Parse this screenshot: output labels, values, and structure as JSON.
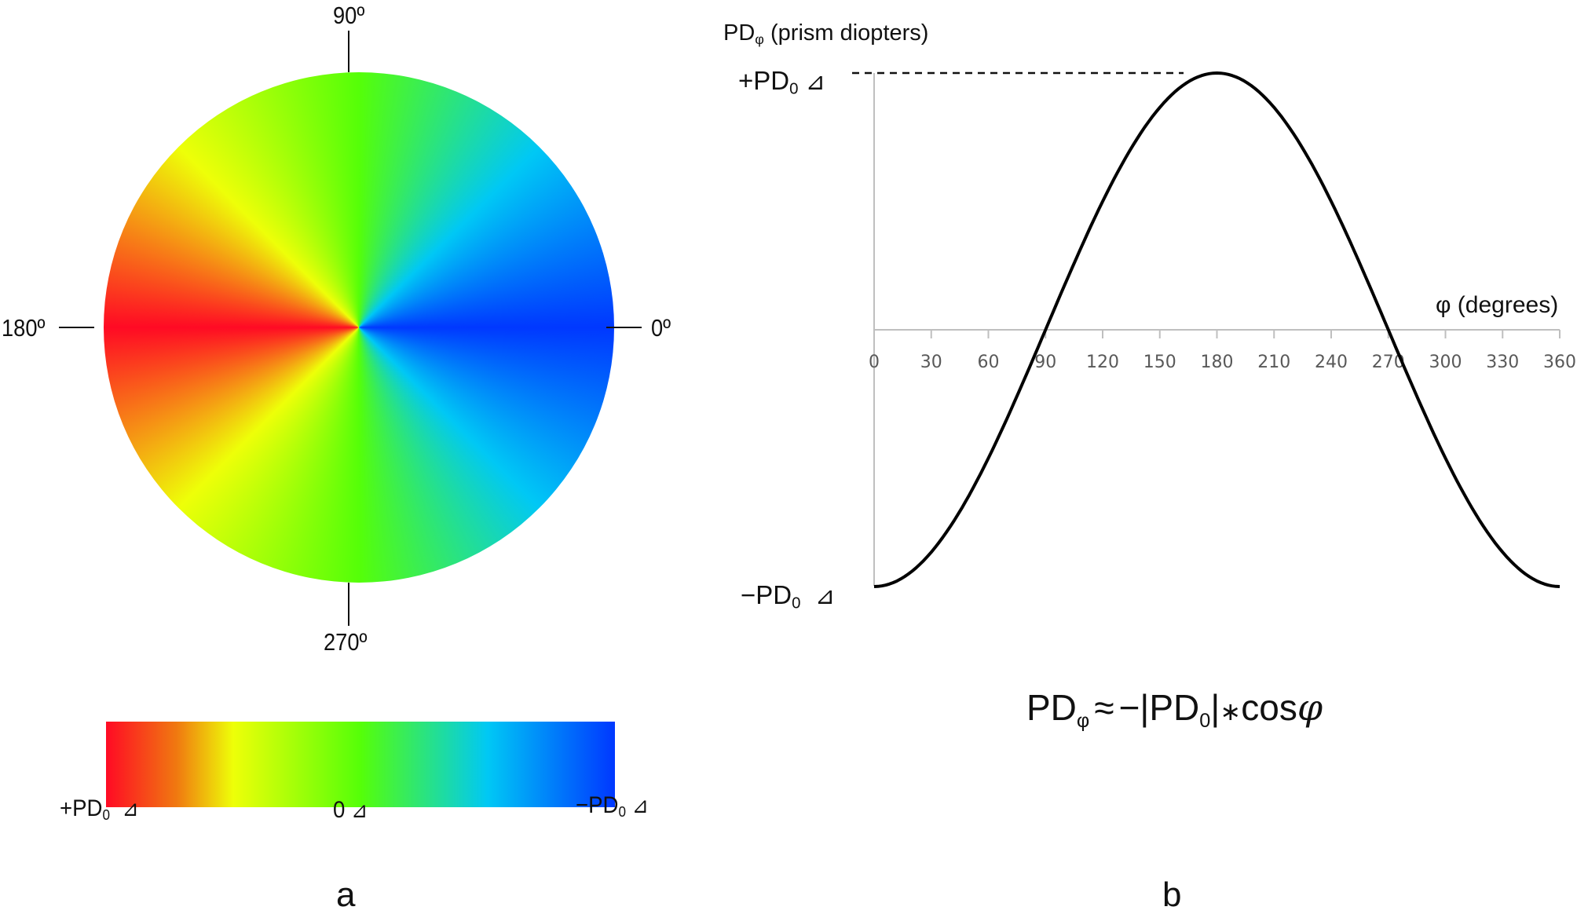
{
  "panel_a": {
    "letter": "a",
    "disk": {
      "angle_labels": {
        "top": "90º",
        "left": "180º",
        "right": "0º",
        "bottom": "270º"
      },
      "gradient_stops": [
        {
          "angle_deg": 0,
          "color": "#0038ff"
        },
        {
          "angle_deg": 45,
          "color": "#00c8f5"
        },
        {
          "angle_deg": 90,
          "color": "#55ff08"
        },
        {
          "angle_deg": 135,
          "color": "#eeff08"
        },
        {
          "angle_deg": 180,
          "color": "#ff0a24"
        },
        {
          "angle_deg": 225,
          "color": "#eeff08"
        },
        {
          "angle_deg": 270,
          "color": "#55ff08"
        },
        {
          "angle_deg": 315,
          "color": "#00c8f5"
        },
        {
          "angle_deg": 360,
          "color": "#0038ff"
        }
      ]
    },
    "colorbar": {
      "stops": [
        "#ff0a24",
        "#f07a10",
        "#eeff08",
        "#55ff08",
        "#00c8f5",
        "#0038ff"
      ],
      "left_label": {
        "sign": "+",
        "main": "PD",
        "sub": "0",
        "unit": "⊿"
      },
      "mid_label": {
        "main": "0",
        "unit": "⊿"
      },
      "right_label": {
        "sign": "−",
        "main": "PD",
        "sub": "0",
        "unit": "⊿"
      }
    }
  },
  "panel_b": {
    "letter": "b",
    "y_axis_title": {
      "main": "PD",
      "sub": "φ",
      "rest": " (prism diopters)"
    },
    "y_top_label": {
      "sign": "+",
      "main": "PD",
      "sub": "0",
      "unit": "⊿"
    },
    "y_bottom_label": {
      "sign": "−",
      "main": "PD",
      "sub": "0",
      "unit": "⊿"
    },
    "x_axis_title": "φ (degrees)",
    "formula": {
      "lhs": "PD",
      "lhs_sub": "φ",
      "approx": "≈",
      "rhs_pre": "−|PD",
      "rhs_sub": "0",
      "rhs_post": "|",
      "star": "∗",
      "cos": "cos",
      "phi": "φ"
    }
  },
  "chart_data": [
    {
      "type": "heatmap",
      "title": "a",
      "description": "Polar color map of prism power vs. meridian angle; color encodes PDφ from +PD0 (red, 180º) through 0 (green, 90º/270º) to −PD0 (blue, 0º)",
      "angle_labels": [
        "0º",
        "90º",
        "180º",
        "270º"
      ],
      "colorbar_labels": [
        "+PD0 ⊿",
        "0 ⊿",
        "−PD0 ⊿"
      ]
    },
    {
      "type": "line",
      "title": "b",
      "xlabel": "φ (degrees)",
      "ylabel": "PDφ (prism diopters)",
      "x": [
        0,
        30,
        60,
        90,
        120,
        150,
        180,
        210,
        240,
        270,
        300,
        330,
        360
      ],
      "xticks": [
        "0",
        "30",
        "60",
        "90",
        "120",
        "150",
        "180",
        "210",
        "240",
        "270",
        "300",
        "330",
        "360"
      ],
      "xlim": [
        0,
        360
      ],
      "ylim": [
        -1,
        1
      ],
      "yticks": [
        "−PD0 ⊿",
        "+PD0 ⊿"
      ],
      "series": [
        {
          "name": "PDφ ≈ −|PD0|*cosφ (normalized to PD0 = 1)",
          "values": [
            -1.0,
            -0.866,
            -0.5,
            0.0,
            0.5,
            0.866,
            1.0,
            0.866,
            0.5,
            0.0,
            -0.5,
            -0.866,
            -1.0
          ]
        }
      ],
      "annotations": [
        "dashed reference line at +PD0",
        "PDφ ≈ −|PD0|∗cosφ"
      ],
      "grid": false
    }
  ]
}
